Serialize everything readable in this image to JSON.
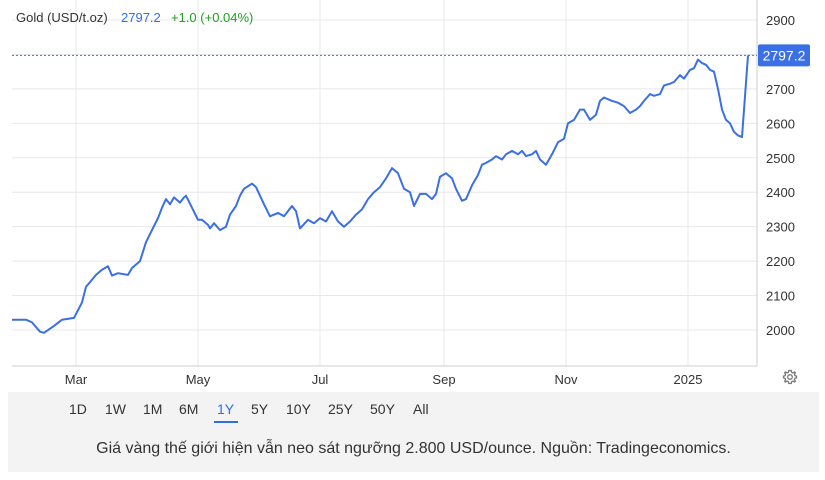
{
  "header": {
    "instrument": "Gold (USD/t.oz)",
    "price": "2797.2",
    "change": "+1.0 (+0.04%)"
  },
  "price_tag": "2797.2",
  "colors": {
    "line": "#3b6fe6",
    "up": "#22a022",
    "grid": "#e6e6e6",
    "accent": "#2f6fe6"
  },
  "settings_icon": "gear-icon",
  "ranges": [
    "1D",
    "1W",
    "1M",
    "6M",
    "1Y",
    "5Y",
    "10Y",
    "25Y",
    "50Y",
    "All"
  ],
  "active_range": "1Y",
  "caption": "Giá vàng thế giới hiện vẫn neo sát ngưỡng 2.800 USD/ounce. Nguồn: Tradingeconomics.",
  "chart_data": {
    "type": "line",
    "title": "Gold (USD/t.oz)",
    "xlabel": "",
    "ylabel": "",
    "ylim": [
      1910,
      2920
    ],
    "y_ticks": [
      2000,
      2100,
      2200,
      2300,
      2400,
      2500,
      2600,
      2700,
      2800,
      2900
    ],
    "y_tick_labels": [
      "2000",
      "2100",
      "2200",
      "2300",
      "2400",
      "2500",
      "2600",
      "2700",
      "2900"
    ],
    "x_ticks": [
      {
        "label": "Mar",
        "date": "2024-03-01"
      },
      {
        "label": "May",
        "date": "2024-05-01"
      },
      {
        "label": "Jul",
        "date": "2024-07-01"
      },
      {
        "label": "Sep",
        "date": "2024-09-01"
      },
      {
        "label": "Nov",
        "date": "2024-11-01"
      },
      {
        "label": "2025",
        "date": "2025-01-01"
      }
    ],
    "xlim": [
      "2024-01-29",
      "2025-01-31"
    ],
    "last_value": 2797.2,
    "grid": true,
    "series": [
      {
        "points": [
          [
            "2024-01-29",
            2030
          ],
          [
            "2024-02-05",
            2030
          ],
          [
            "2024-02-08",
            2022
          ],
          [
            "2024-02-12",
            1995
          ],
          [
            "2024-02-14",
            1992
          ],
          [
            "2024-02-19",
            2012
          ],
          [
            "2024-02-23",
            2030
          ],
          [
            "2024-02-29",
            2035
          ],
          [
            "2024-03-04",
            2080
          ],
          [
            "2024-03-06",
            2125
          ],
          [
            "2024-03-11",
            2160
          ],
          [
            "2024-03-14",
            2175
          ],
          [
            "2024-03-17",
            2185
          ],
          [
            "2024-03-19",
            2158
          ],
          [
            "2024-03-22",
            2165
          ],
          [
            "2024-03-27",
            2160
          ],
          [
            "2024-03-29",
            2180
          ],
          [
            "2024-04-02",
            2200
          ],
          [
            "2024-04-05",
            2255
          ],
          [
            "2024-04-08",
            2290
          ],
          [
            "2024-04-11",
            2325
          ],
          [
            "2024-04-13",
            2355
          ],
          [
            "2024-04-15",
            2380
          ],
          [
            "2024-04-17",
            2365
          ],
          [
            "2024-04-19",
            2385
          ],
          [
            "2024-04-22",
            2370
          ],
          [
            "2024-04-24",
            2385
          ],
          [
            "2024-04-25",
            2390
          ],
          [
            "2024-04-28",
            2355
          ],
          [
            "2024-05-01",
            2320
          ],
          [
            "2024-05-03",
            2320
          ],
          [
            "2024-05-06",
            2305
          ],
          [
            "2024-05-07",
            2295
          ],
          [
            "2024-05-09",
            2310
          ],
          [
            "2024-05-12",
            2290
          ],
          [
            "2024-05-15",
            2300
          ],
          [
            "2024-05-17",
            2335
          ],
          [
            "2024-05-20",
            2360
          ],
          [
            "2024-05-22",
            2390
          ],
          [
            "2024-05-24",
            2410
          ],
          [
            "2024-05-28",
            2425
          ],
          [
            "2024-05-30",
            2415
          ],
          [
            "2024-06-03",
            2365
          ],
          [
            "2024-06-06",
            2330
          ],
          [
            "2024-06-10",
            2340
          ],
          [
            "2024-06-13",
            2330
          ],
          [
            "2024-06-17",
            2360
          ],
          [
            "2024-06-19",
            2345
          ],
          [
            "2024-06-21",
            2295
          ],
          [
            "2024-06-25",
            2320
          ],
          [
            "2024-06-28",
            2310
          ],
          [
            "2024-07-01",
            2325
          ],
          [
            "2024-07-04",
            2315
          ],
          [
            "2024-07-07",
            2345
          ],
          [
            "2024-07-10",
            2315
          ],
          [
            "2024-07-13",
            2300
          ],
          [
            "2024-07-16",
            2315
          ],
          [
            "2024-07-19",
            2335
          ],
          [
            "2024-07-22",
            2350
          ],
          [
            "2024-07-25",
            2380
          ],
          [
            "2024-07-28",
            2400
          ],
          [
            "2024-07-31",
            2415
          ],
          [
            "2024-08-03",
            2440
          ],
          [
            "2024-08-06",
            2470
          ],
          [
            "2024-08-09",
            2455
          ],
          [
            "2024-08-12",
            2410
          ],
          [
            "2024-08-15",
            2400
          ],
          [
            "2024-08-17",
            2360
          ],
          [
            "2024-08-20",
            2395
          ],
          [
            "2024-08-23",
            2395
          ],
          [
            "2024-08-26",
            2380
          ],
          [
            "2024-08-28",
            2395
          ],
          [
            "2024-08-30",
            2445
          ],
          [
            "2024-09-02",
            2455
          ],
          [
            "2024-09-05",
            2440
          ],
          [
            "2024-09-07",
            2410
          ],
          [
            "2024-09-10",
            2375
          ],
          [
            "2024-09-12",
            2380
          ],
          [
            "2024-09-15",
            2420
          ],
          [
            "2024-09-18",
            2450
          ],
          [
            "2024-09-20",
            2480
          ],
          [
            "2024-09-22",
            2485
          ],
          [
            "2024-09-25",
            2495
          ],
          [
            "2024-09-27",
            2505
          ],
          [
            "2024-09-30",
            2495
          ],
          [
            "2024-10-02",
            2510
          ],
          [
            "2024-10-05",
            2520
          ],
          [
            "2024-10-08",
            2510
          ],
          [
            "2024-10-10",
            2520
          ],
          [
            "2024-10-12",
            2505
          ],
          [
            "2024-10-15",
            2510
          ],
          [
            "2024-10-17",
            2520
          ],
          [
            "2024-10-19",
            2495
          ],
          [
            "2024-10-22",
            2480
          ],
          [
            "2024-10-25",
            2510
          ],
          [
            "2024-10-28",
            2545
          ],
          [
            "2024-10-31",
            2555
          ],
          [
            "2024-11-02",
            2600
          ],
          [
            "2024-11-05",
            2610
          ],
          [
            "2024-11-08",
            2640
          ],
          [
            "2024-11-10",
            2640
          ],
          [
            "2024-11-13",
            2610
          ],
          [
            "2024-11-16",
            2625
          ],
          [
            "2024-11-18",
            2665
          ],
          [
            "2024-11-20",
            2675
          ],
          [
            "2024-11-24",
            2665
          ],
          [
            "2024-11-27",
            2660
          ],
          [
            "2024-11-30",
            2650
          ],
          [
            "2024-12-03",
            2630
          ],
          [
            "2024-12-06",
            2640
          ],
          [
            "2024-12-08",
            2650
          ],
          [
            "2024-12-10",
            2665
          ],
          [
            "2024-12-13",
            2685
          ],
          [
            "2024-12-15",
            2680
          ],
          [
            "2024-12-18",
            2685
          ],
          [
            "2024-12-20",
            2710
          ],
          [
            "2024-12-23",
            2715
          ],
          [
            "2024-12-25",
            2720
          ],
          [
            "2024-12-28",
            2740
          ],
          [
            "2024-12-30",
            2730
          ],
          [
            "2025-01-02",
            2755
          ],
          [
            "2025-01-04",
            2760
          ],
          [
            "2025-01-06",
            2785
          ],
          [
            "2025-01-08",
            2775
          ],
          [
            "2025-01-10",
            2770
          ],
          [
            "2025-01-12",
            2755
          ],
          [
            "2025-01-14",
            2750
          ],
          [
            "2025-01-16",
            2700
          ],
          [
            "2025-01-18",
            2640
          ],
          [
            "2025-01-20",
            2610
          ],
          [
            "2025-01-22",
            2600
          ],
          [
            "2025-01-24",
            2575
          ],
          [
            "2025-01-26",
            2565
          ],
          [
            "2025-01-28",
            2560
          ],
          [
            "2025-01-31",
            2797.2
          ]
        ]
      }
    ]
  }
}
